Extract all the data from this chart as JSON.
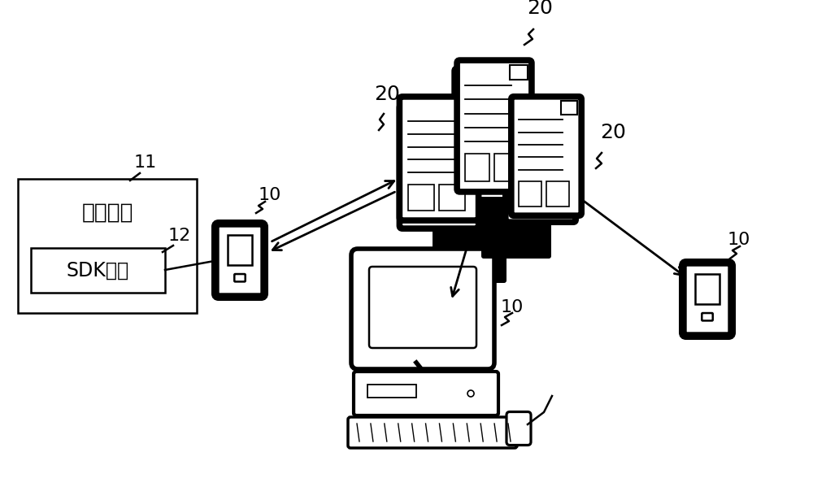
{
  "bg_color": "#ffffff",
  "label_11": "11",
  "label_12": "12",
  "label_10_left": "10",
  "label_10_right": "10",
  "label_10_bottom": "10",
  "label_20_topleft": "20",
  "label_20_top": "20",
  "label_20_right": "20",
  "text_target_app": "目标应用",
  "text_sdk": "SDK功能",
  "figsize": [
    10.0,
    5.99
  ],
  "dpi": 100
}
